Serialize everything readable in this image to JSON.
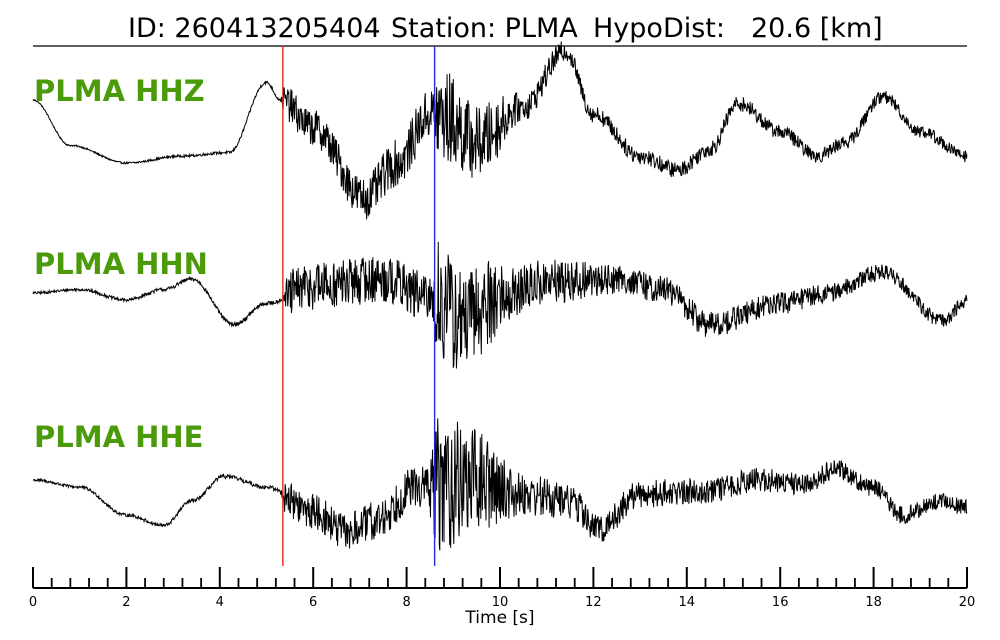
{
  "header": {
    "id_label": "ID: 260413205404",
    "station_label": "Station: PLMA",
    "dist_label": "HypoDist:",
    "dist_value": "20.6 [km]"
  },
  "colors": {
    "trace": "#000000",
    "label": "#4a9a0a",
    "p_pick": "#e8221c",
    "s_pick": "#1f2fd8"
  },
  "chart_data": {
    "type": "line",
    "title": "ID: 260413205404   Station: PLMA   HypoDist:    20.6 [km]",
    "xlabel": "Time [s]",
    "ylabel": "",
    "xlim": [
      0,
      20
    ],
    "x_ticks_major": [
      0,
      2,
      4,
      6,
      8,
      10,
      12,
      14,
      16,
      18,
      20
    ],
    "x_tick_labels": [
      "0",
      "2",
      "4",
      "6",
      "8",
      "10",
      "12",
      "14",
      "16",
      "18",
      "20"
    ],
    "x_minor_step": 0.4,
    "grid": false,
    "picks": [
      {
        "time": 5.35,
        "color": "#e8221c"
      },
      {
        "time": 8.6,
        "color": "#1f2fd8"
      }
    ],
    "series": [
      {
        "name": "PLMA HHZ",
        "envelope": [
          [
            0,
            0.5
          ],
          [
            0.8,
            -0.15
          ],
          [
            2,
            -0.4
          ],
          [
            3.2,
            -0.3
          ],
          [
            4.2,
            -0.25
          ],
          [
            5,
            0.75
          ],
          [
            5.3,
            0.5
          ],
          [
            6,
            0.1
          ],
          [
            7.1,
            -0.9
          ],
          [
            7.8,
            -0.4
          ],
          [
            8.5,
            0.3
          ],
          [
            8.8,
            0.25
          ],
          [
            9.5,
            -0.1
          ],
          [
            10.5,
            0.4
          ],
          [
            11.4,
            1.2
          ],
          [
            12,
            0.3
          ],
          [
            13,
            -0.3
          ],
          [
            13.8,
            -0.5
          ],
          [
            14.5,
            -0.2
          ],
          [
            15.1,
            0.45
          ],
          [
            16,
            0.05
          ],
          [
            16.8,
            -0.3
          ],
          [
            17.4,
            -0.1
          ],
          [
            18.2,
            0.55
          ],
          [
            19,
            0.05
          ],
          [
            20,
            -0.3
          ]
        ],
        "noise": [
          [
            0,
            0.01
          ],
          [
            5.3,
            0.02
          ],
          [
            5.4,
            0.25
          ],
          [
            8.5,
            0.35
          ],
          [
            8.7,
            0.7
          ],
          [
            9.7,
            0.5
          ],
          [
            10.5,
            0.2
          ],
          [
            12,
            0.12
          ],
          [
            20,
            0.09
          ]
        ]
      },
      {
        "name": "PLMA HHN",
        "envelope": [
          [
            0,
            0.1
          ],
          [
            1,
            0.15
          ],
          [
            2,
            0.0
          ],
          [
            2.8,
            0.15
          ],
          [
            3.4,
            0.3
          ],
          [
            4.3,
            -0.35
          ],
          [
            5,
            -0.05
          ],
          [
            6,
            0.2
          ],
          [
            7.5,
            0.3
          ],
          [
            8.6,
            0.0
          ],
          [
            9.2,
            -0.3
          ],
          [
            10,
            0.05
          ],
          [
            11,
            0.25
          ],
          [
            12.5,
            0.3
          ],
          [
            13.5,
            0.15
          ],
          [
            14.5,
            -0.35
          ],
          [
            16,
            -0.05
          ],
          [
            17,
            0.1
          ],
          [
            18.2,
            0.4
          ],
          [
            19.5,
            -0.3
          ],
          [
            20,
            0.0
          ]
        ],
        "noise": [
          [
            0,
            0.02
          ],
          [
            5.3,
            0.03
          ],
          [
            5.5,
            0.35
          ],
          [
            8.5,
            0.35
          ],
          [
            8.7,
            0.9
          ],
          [
            9.5,
            0.7
          ],
          [
            10.5,
            0.35
          ],
          [
            13,
            0.2
          ],
          [
            20,
            0.1
          ]
        ]
      },
      {
        "name": "PLMA HHE",
        "envelope": [
          [
            0,
            0.1
          ],
          [
            1,
            0.0
          ],
          [
            2,
            -0.4
          ],
          [
            2.8,
            -0.55
          ],
          [
            3.4,
            -0.2
          ],
          [
            4.1,
            0.15
          ],
          [
            5,
            0.0
          ],
          [
            6,
            -0.35
          ],
          [
            6.7,
            -0.65
          ],
          [
            7.3,
            -0.5
          ],
          [
            8.2,
            0.0
          ],
          [
            9.4,
            0.1
          ],
          [
            10.5,
            -0.1
          ],
          [
            11.5,
            -0.2
          ],
          [
            12.1,
            -0.6
          ],
          [
            13,
            -0.1
          ],
          [
            14.5,
            -0.05
          ],
          [
            15.5,
            0.1
          ],
          [
            16.5,
            0.05
          ],
          [
            17.2,
            0.25
          ],
          [
            18,
            0.0
          ],
          [
            18.6,
            -0.4
          ],
          [
            19.5,
            -0.2
          ],
          [
            20,
            -0.3
          ]
        ],
        "noise": [
          [
            0,
            0.02
          ],
          [
            5.3,
            0.03
          ],
          [
            5.4,
            0.25
          ],
          [
            8.4,
            0.3
          ],
          [
            8.7,
            1.0
          ],
          [
            9.6,
            0.7
          ],
          [
            10.5,
            0.3
          ],
          [
            12.5,
            0.2
          ],
          [
            20,
            0.12
          ]
        ]
      }
    ]
  }
}
